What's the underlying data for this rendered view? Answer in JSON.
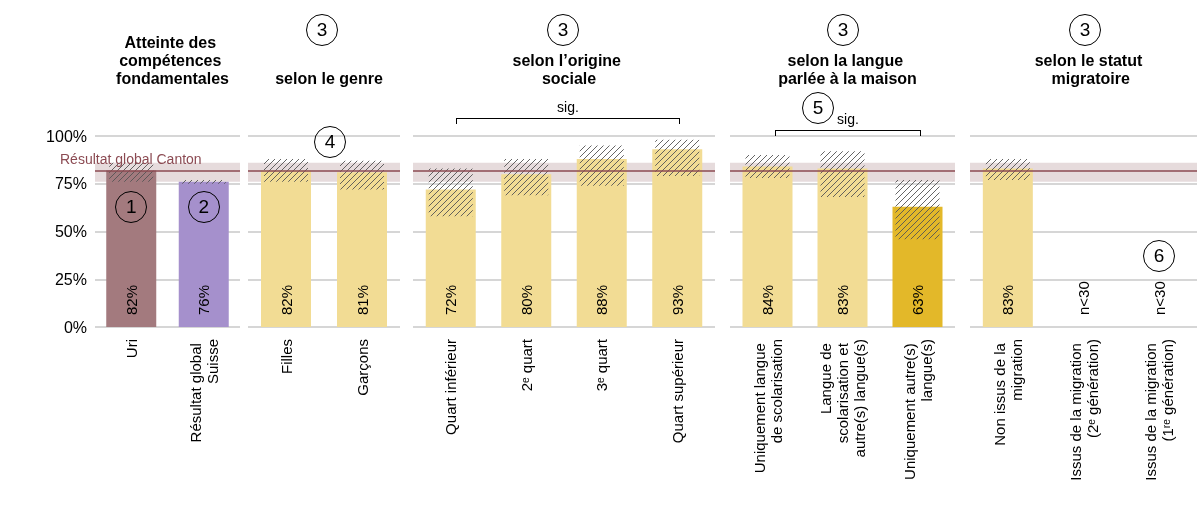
{
  "chart_data": [
    {
      "type": "bar",
      "title": "Atteinte des compétences fondamentales",
      "categories": [
        "Uri",
        "Résultat global Suisse"
      ],
      "series": [
        {
          "colors": [
            "#a37a7e",
            "#a590cc"
          ],
          "values": [
            82,
            76
          ],
          "value_labels": [
            "82%",
            "76%"
          ]
        },
        {
          "color": "#555555",
          "base": [
            76,
            75
          ],
          "values": [
            10,
            2
          ]
        }
      ],
      "ylim": [
        0,
        100
      ],
      "yticks": [
        {
          "value": 0,
          "label": "0%"
        },
        {
          "value": 25,
          "label": "25%"
        },
        {
          "value": 50,
          "label": "50%"
        },
        {
          "value": 75,
          "label": "75%"
        },
        {
          "value": 100,
          "label": "100%"
        }
      ],
      "grid": "y",
      "ref_lines": [
        {
          "axis": "y",
          "value": 82,
          "label": "Résultat global Canton",
          "color": "#8b4a52"
        }
      ],
      "bands": [
        {
          "axis": "y",
          "from": 76,
          "to": 86,
          "color": "#e6dbdc"
        }
      ],
      "annotations": [
        {
          "text": "1",
          "x": "Uri",
          "y": 63
        },
        {
          "text": "2",
          "x": "Résultat global Suisse",
          "y": 63
        }
      ]
    },
    {
      "type": "bar",
      "title": "selon le genre",
      "categories": [
        "Filles",
        "Garçons"
      ],
      "series": [
        {
          "colors": [
            "#f2dc94",
            "#f2dc94"
          ],
          "values": [
            82,
            81
          ],
          "value_labels": [
            "82%",
            "81%"
          ]
        },
        {
          "color": "#555555",
          "base": [
            76,
            72
          ],
          "values": [
            12,
            15
          ]
        }
      ],
      "ylim": [
        0,
        100
      ],
      "yticks": [
        0,
        25,
        50,
        75,
        100
      ],
      "tick_labels": "x",
      "grid": "y",
      "ref_lines": [
        {
          "axis": "y",
          "value": 82,
          "color": "#8b4a52"
        }
      ],
      "bands": [
        {
          "axis": "y",
          "from": 76,
          "to": 86,
          "color": "#e6dbdc"
        }
      ],
      "annotations": [
        "3",
        {
          "text": "4",
          "y": 97
        }
      ]
    },
    {
      "type": "bar",
      "title": "selon l’origine sociale",
      "categories": [
        "Quart inférieur",
        "2ᵉ quart",
        "3ᵉ quart",
        "Quart supérieur"
      ],
      "series": [
        {
          "colors": [
            "#f2dc94",
            "#f2dc94",
            "#f2dc94",
            "#f2dc94"
          ],
          "values": [
            72,
            80,
            88,
            93
          ],
          "value_labels": [
            "72%",
            "80%",
            "88%",
            "93%"
          ]
        },
        {
          "color": "#555555",
          "base": [
            58,
            69,
            74,
            79
          ],
          "values": [
            25,
            19,
            21,
            19
          ]
        }
      ],
      "ylim": [
        0,
        100
      ],
      "yticks": [
        0,
        25,
        50,
        75,
        100
      ],
      "tick_labels": "x",
      "grid": "y",
      "ref_lines": [
        {
          "axis": "y",
          "value": 82,
          "color": "#8b4a52"
        }
      ],
      "bands": [
        {
          "axis": "y",
          "from": 76,
          "to": 86,
          "color": "#e6dbdc"
        }
      ],
      "annotations": [
        "3",
        "sig."
      ]
    },
    {
      "type": "bar",
      "title": "selon la langue parlée à la maison",
      "categories": [
        "Uniquement langue de scolarisation",
        "Langue de scolarisation et autre(s) langue(s)",
        "Uniquement autre(s) langue(s)"
      ],
      "series": [
        {
          "colors": [
            "#f2dc94",
            "#f2dc94",
            "#e3b829"
          ],
          "values": [
            84,
            83,
            63
          ],
          "value_labels": [
            "84%",
            "83%",
            "63%"
          ]
        },
        {
          "color": "#555555",
          "base": [
            78,
            68,
            46
          ],
          "values": [
            12,
            24,
            31
          ]
        }
      ],
      "ylim": [
        0,
        100
      ],
      "yticks": [
        0,
        25,
        50,
        75,
        100
      ],
      "tick_labels": "x",
      "grid": "y",
      "ref_lines": [
        {
          "axis": "y",
          "value": 82,
          "color": "#8b4a52"
        }
      ],
      "bands": [
        {
          "axis": "y",
          "from": 76,
          "to": 86,
          "color": "#e6dbdc"
        }
      ],
      "annotations": [
        "3",
        "5",
        "sig."
      ]
    },
    {
      "type": "bar",
      "title": "selon le statut migratoire",
      "categories": [
        "Non issus de la migration",
        "Issus de la migration (2ᵉ génération)",
        "Issus de la migration (1ʳᵉ génération)"
      ],
      "series": [
        {
          "colors": [
            "#f2dc94",
            "#f2dc94",
            "#f2dc94"
          ],
          "values": [
            83,
            null,
            null
          ],
          "value_labels": [
            "83%",
            "n<30",
            "n<30"
          ]
        },
        {
          "color": "#555555",
          "base": [
            77,
            null,
            null
          ],
          "values": [
            11,
            null,
            null
          ]
        }
      ],
      "ylim": [
        0,
        100
      ],
      "yticks": [
        0,
        25,
        50,
        75,
        100
      ],
      "tick_labels": "x",
      "grid": "y",
      "ref_lines": [
        {
          "axis": "y",
          "value": 82,
          "color": "#8b4a52"
        }
      ],
      "bands": [
        {
          "axis": "y",
          "from": 76,
          "to": 86,
          "color": "#e6dbdc"
        }
      ],
      "annotations": [
        "3",
        {
          "text": "6",
          "x": "Issus de la migration (1ʳᵉ génération)",
          "y": 37
        }
      ]
    }
  ]
}
